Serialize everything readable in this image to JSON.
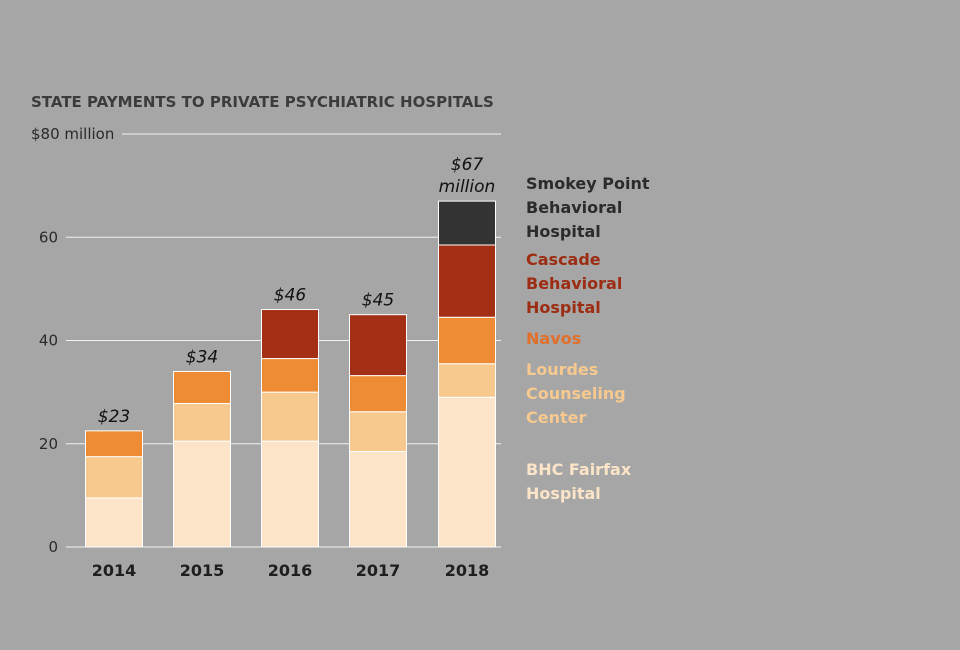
{
  "chart_data": {
    "type": "bar",
    "stacked": true,
    "title": "STATE PAYMENTS TO PRIVATE PSYCHIATRIC HOSPITALS",
    "categories": [
      "2014",
      "2015",
      "2016",
      "2017",
      "2018"
    ],
    "ylim": [
      0,
      80
    ],
    "yticks": [
      {
        "value": 0,
        "label": "0"
      },
      {
        "value": 20,
        "label": "20"
      },
      {
        "value": 40,
        "label": "40"
      },
      {
        "value": 60,
        "label": "60"
      },
      {
        "value": 80,
        "label": "$80 million"
      }
    ],
    "grid": true,
    "legend_placement": "right",
    "series": [
      {
        "name": "BHC Fairfax Hospital",
        "legend_lines": [
          "BHC Fairfax",
          "Hospital"
        ],
        "color": "#fce4c8",
        "text_color": "#fce4c8",
        "values": [
          9.5,
          20.5,
          20.5,
          18.5,
          29
        ]
      },
      {
        "name": "Lourdes Counseling Center",
        "legend_lines": [
          "Lourdes",
          "Counseling",
          "Center"
        ],
        "color": "#f7c98e",
        "text_color": "#f7c98e",
        "values": [
          8,
          7.3,
          9.5,
          7.7,
          6.5
        ]
      },
      {
        "name": "Navos",
        "legend_lines": [
          "Navos"
        ],
        "color": "#ee8c35",
        "text_color": "#e0702a",
        "values": [
          5,
          6.2,
          6.5,
          7,
          9
        ]
      },
      {
        "name": "Cascade Behavioral Hospital",
        "legend_lines": [
          "Cascade",
          "Behavioral",
          "Hospital"
        ],
        "color": "#a33014",
        "text_color": "#9c2c12",
        "values": [
          0,
          0,
          9.5,
          11.8,
          14
        ]
      },
      {
        "name": "Smokey Point Behavioral Hospital",
        "legend_lines": [
          "Smokey Point",
          "Behavioral",
          "Hospital"
        ],
        "color": "#333333",
        "text_color": "#2b2b2b",
        "values": [
          0,
          0,
          0,
          0,
          8.5
        ]
      }
    ],
    "totals": [
      {
        "lines": [
          "$23"
        ]
      },
      {
        "lines": [
          "$34"
        ]
      },
      {
        "lines": [
          "$46"
        ]
      },
      {
        "lines": [
          "$45"
        ]
      },
      {
        "lines": [
          "$67",
          "million"
        ]
      }
    ]
  }
}
